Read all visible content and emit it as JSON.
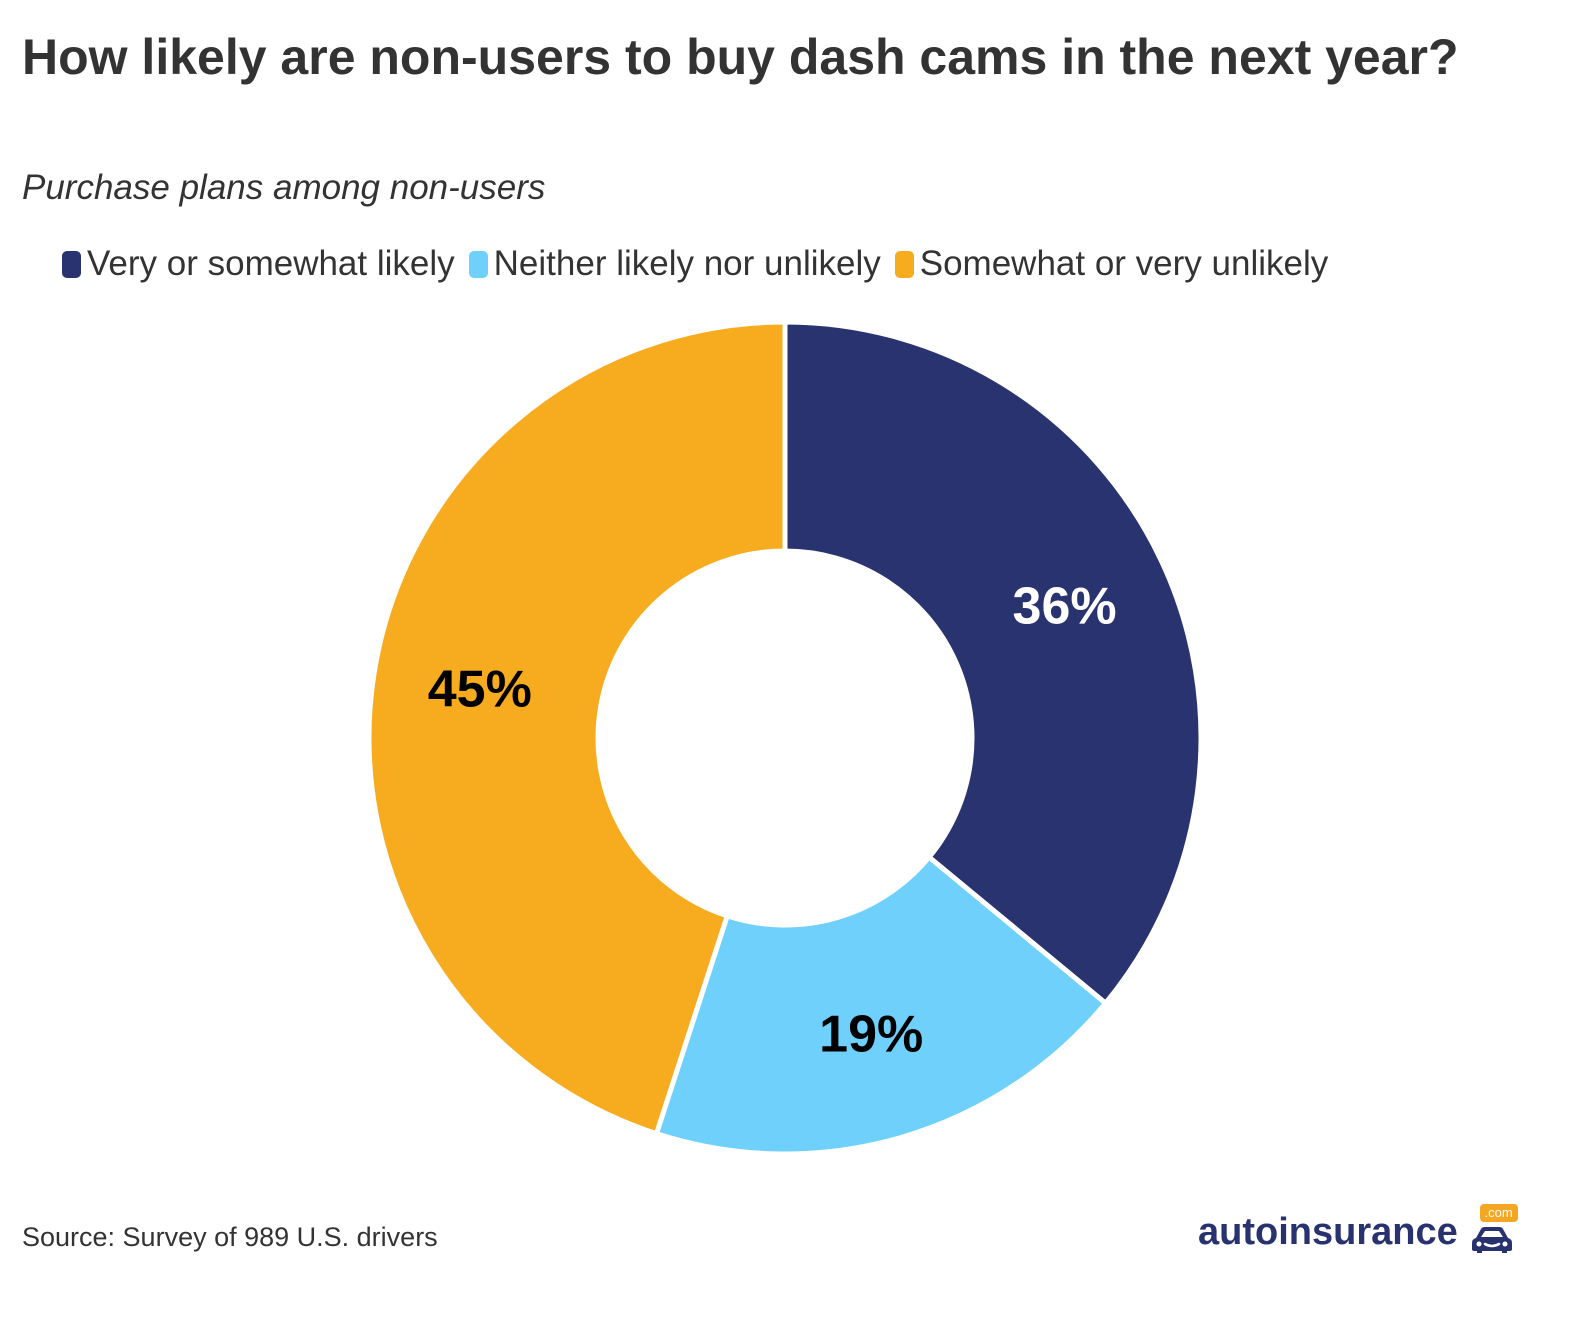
{
  "title": "How likely are non-users to buy dash cams in the next year?",
  "subtitle": "Purchase plans among non-users",
  "source": "Source: Survey of 989 U.S. drivers",
  "logo": {
    "text": "autoinsurance",
    "badge": ".com",
    "icon": "car-icon"
  },
  "colors": {
    "likely": "#28336f",
    "neither": "#6fd0fc",
    "unlikely": "#f7ab1e",
    "text": "#333333"
  },
  "chart_data": {
    "type": "pie",
    "donut": true,
    "title": "How likely are non-users to buy dash cams in the next year?",
    "subtitle": "Purchase plans among non-users",
    "legend_position": "top",
    "categories": [
      "Very or somewhat likely",
      "Neither likely nor unlikely",
      "Somewhat or very unlikely"
    ],
    "values": [
      36,
      19,
      45
    ],
    "labels": [
      "36%",
      "19%",
      "45%"
    ],
    "colors": [
      "#28336f",
      "#6fd0fc",
      "#f7ab1e"
    ],
    "label_colors": [
      "#ffffff",
      "#000000",
      "#000000"
    ],
    "unit": "%"
  }
}
